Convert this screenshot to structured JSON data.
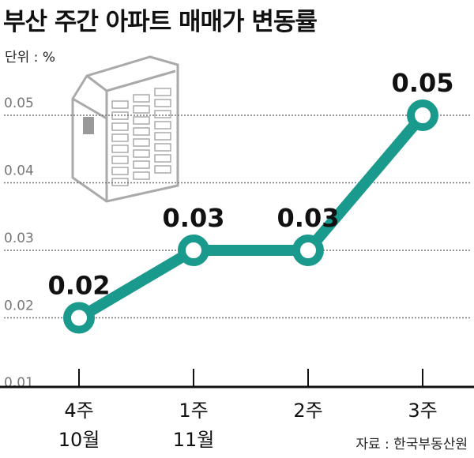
{
  "header": {
    "title": "부산 주간 아파트 매매가 변동률",
    "unit": "단위 : %",
    "source": "자료 : 한국부동산원"
  },
  "chart_data": {
    "type": "line",
    "title": "부산 주간 아파트 매매가 변동률",
    "ylabel": "%",
    "categories": [
      [
        "4주",
        "10월"
      ],
      [
        "1주",
        "11월"
      ],
      [
        "2주",
        ""
      ],
      [
        "3주",
        ""
      ]
    ],
    "values": [
      0.02,
      0.03,
      0.03,
      0.05
    ],
    "data_labels": [
      "0.02",
      "0.03",
      "0.03",
      "0.05"
    ],
    "yticks": [
      "0.05",
      "0.04",
      "0.03",
      "0.02",
      "0.01"
    ],
    "ytick_values": [
      0.05,
      0.04,
      0.03,
      0.02,
      0.01
    ],
    "ylim": [
      0.01,
      0.05
    ],
    "grid": true,
    "color": "#1a9a8c"
  }
}
